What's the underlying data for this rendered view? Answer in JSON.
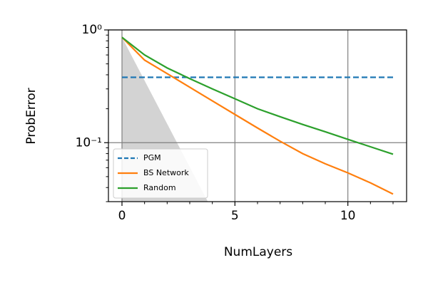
{
  "chart_data": {
    "type": "line",
    "xlabel": "NumLayers",
    "ylabel": "ProbError",
    "x": [
      0,
      1,
      2,
      3,
      4,
      5,
      6,
      7,
      8,
      9,
      10,
      11,
      12
    ],
    "series": [
      {
        "name": "PGM",
        "color": "#1f77b4",
        "dashed": true,
        "values": [
          0.38,
          0.38,
          0.38,
          0.38,
          0.38,
          0.38,
          0.38,
          0.38,
          0.38,
          0.38,
          0.38,
          0.38,
          0.38
        ]
      },
      {
        "name": "BS Network",
        "color": "#ff7f0e",
        "values": [
          0.86,
          0.54,
          0.41,
          0.31,
          0.235,
          0.178,
          0.135,
          0.103,
          0.08,
          0.065,
          0.054,
          0.044,
          0.035
        ]
      },
      {
        "name": "Random",
        "color": "#2ca02c",
        "values": [
          0.86,
          0.6,
          0.46,
          0.37,
          0.3,
          0.245,
          0.2,
          0.17,
          0.145,
          0.125,
          0.107,
          0.092,
          0.079
        ]
      }
    ],
    "shade": {
      "x": [
        0,
        0,
        3.8
      ],
      "y": [
        0.86,
        0.03,
        0.03
      ],
      "color": "#d3d3d3"
    },
    "xlim": [
      -0.6,
      12.6
    ],
    "xticks": [
      0,
      5,
      10
    ],
    "xminor_ticks": [
      1,
      2,
      3,
      4,
      6,
      7,
      8,
      9,
      11,
      12
    ],
    "ylim": [
      0.03,
      1
    ],
    "ylog": true,
    "yticks": [
      {
        "value": 1,
        "label": "10⁰"
      },
      {
        "value": 0.1,
        "label": "10⁻¹"
      }
    ],
    "yminor_ticks": [
      0.03,
      0.04,
      0.05,
      0.06,
      0.07,
      0.08,
      0.09,
      0.2,
      0.3,
      0.4,
      0.5,
      0.6,
      0.7,
      0.8,
      0.9
    ],
    "grid": true,
    "legend": "lower left"
  }
}
